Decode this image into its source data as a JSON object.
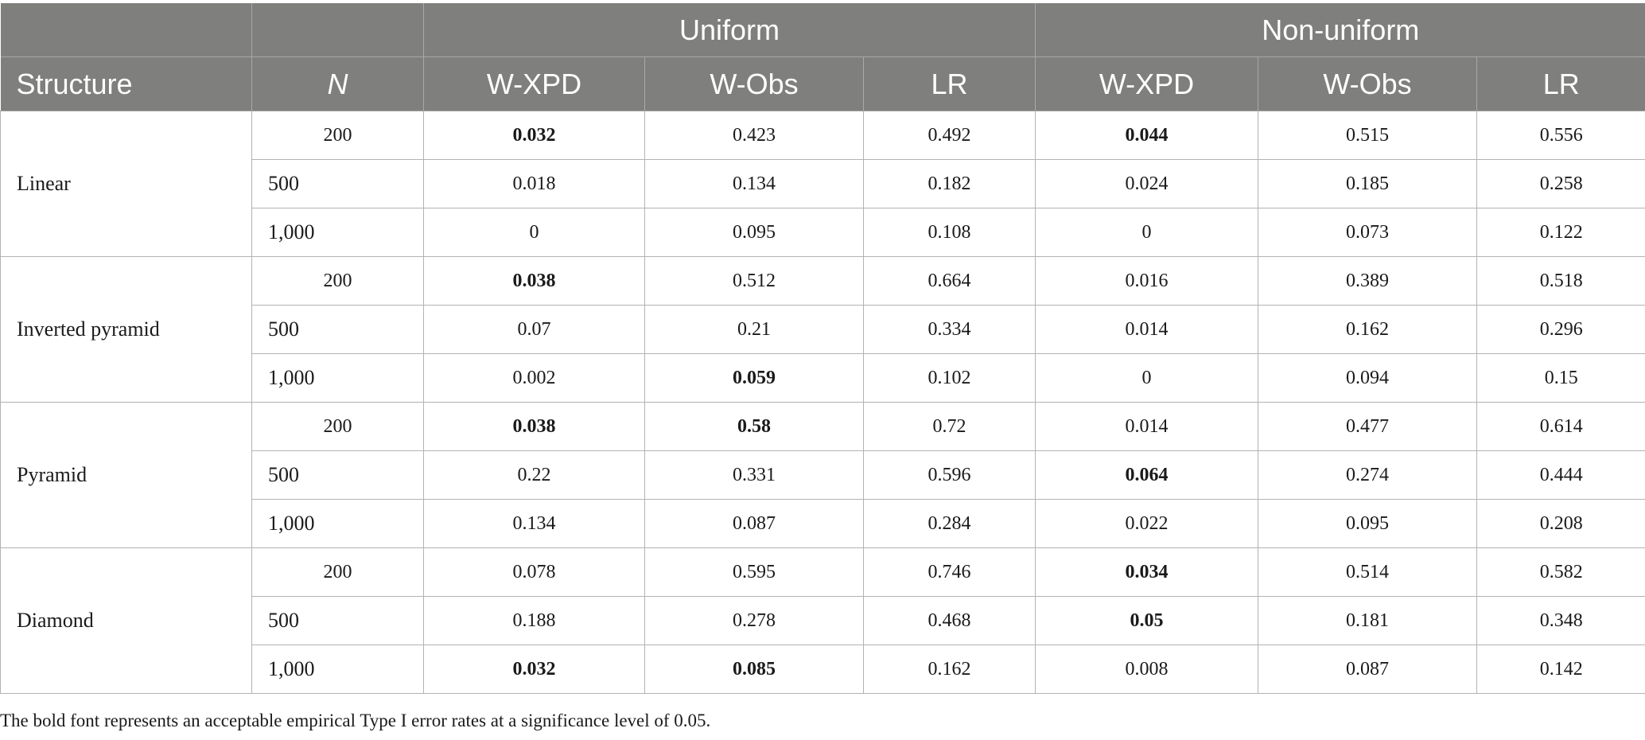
{
  "table": {
    "group_headers": [
      "",
      "",
      "Uniform",
      "Non-uniform"
    ],
    "column_headers": [
      "Structure",
      "N",
      "W-XPD",
      "W-Obs",
      "LR",
      "W-XPD",
      "W-Obs",
      "LR"
    ],
    "groups": [
      {
        "structure": "Linear",
        "rows": [
          {
            "n": "200",
            "cells": [
              {
                "v": "0.032",
                "b": true
              },
              {
                "v": "0.423",
                "b": false
              },
              {
                "v": "0.492",
                "b": false
              },
              {
                "v": "0.044",
                "b": true
              },
              {
                "v": "0.515",
                "b": false
              },
              {
                "v": "0.556",
                "b": false
              }
            ]
          },
          {
            "n": "500",
            "cells": [
              {
                "v": "0.018",
                "b": false
              },
              {
                "v": "0.134",
                "b": false
              },
              {
                "v": "0.182",
                "b": false
              },
              {
                "v": "0.024",
                "b": false
              },
              {
                "v": "0.185",
                "b": false
              },
              {
                "v": "0.258",
                "b": false
              }
            ]
          },
          {
            "n": "1,000",
            "cells": [
              {
                "v": "0",
                "b": false
              },
              {
                "v": "0.095",
                "b": false
              },
              {
                "v": "0.108",
                "b": false
              },
              {
                "v": "0",
                "b": false
              },
              {
                "v": "0.073",
                "b": false
              },
              {
                "v": "0.122",
                "b": false
              }
            ]
          }
        ]
      },
      {
        "structure": "Inverted pyramid",
        "rows": [
          {
            "n": "200",
            "cells": [
              {
                "v": "0.038",
                "b": true
              },
              {
                "v": "0.512",
                "b": false
              },
              {
                "v": "0.664",
                "b": false
              },
              {
                "v": "0.016",
                "b": false
              },
              {
                "v": "0.389",
                "b": false
              },
              {
                "v": "0.518",
                "b": false
              }
            ]
          },
          {
            "n": "500",
            "cells": [
              {
                "v": "0.07",
                "b": false
              },
              {
                "v": "0.21",
                "b": false
              },
              {
                "v": "0.334",
                "b": false
              },
              {
                "v": "0.014",
                "b": false
              },
              {
                "v": "0.162",
                "b": false
              },
              {
                "v": "0.296",
                "b": false
              }
            ]
          },
          {
            "n": "1,000",
            "cells": [
              {
                "v": "0.002",
                "b": false
              },
              {
                "v": "0.059",
                "b": true
              },
              {
                "v": "0.102",
                "b": false
              },
              {
                "v": "0",
                "b": false
              },
              {
                "v": "0.094",
                "b": false
              },
              {
                "v": "0.15",
                "b": false
              }
            ]
          }
        ]
      },
      {
        "structure": "Pyramid",
        "rows": [
          {
            "n": "200",
            "cells": [
              {
                "v": "0.038",
                "b": true
              },
              {
                "v": "0.58",
                "b": true
              },
              {
                "v": "0.72",
                "b": false
              },
              {
                "v": "0.014",
                "b": false
              },
              {
                "v": "0.477",
                "b": false
              },
              {
                "v": "0.614",
                "b": false
              }
            ]
          },
          {
            "n": "500",
            "cells": [
              {
                "v": "0.22",
                "b": false
              },
              {
                "v": "0.331",
                "b": false
              },
              {
                "v": "0.596",
                "b": false
              },
              {
                "v": "0.064",
                "b": true
              },
              {
                "v": "0.274",
                "b": false
              },
              {
                "v": "0.444",
                "b": false
              }
            ]
          },
          {
            "n": "1,000",
            "cells": [
              {
                "v": "0.134",
                "b": false
              },
              {
                "v": "0.087",
                "b": false
              },
              {
                "v": "0.284",
                "b": false
              },
              {
                "v": "0.022",
                "b": false
              },
              {
                "v": "0.095",
                "b": false
              },
              {
                "v": "0.208",
                "b": false
              }
            ]
          }
        ]
      },
      {
        "structure": "Diamond",
        "rows": [
          {
            "n": "200",
            "cells": [
              {
                "v": "0.078",
                "b": false
              },
              {
                "v": "0.595",
                "b": false
              },
              {
                "v": "0.746",
                "b": false
              },
              {
                "v": "0.034",
                "b": true
              },
              {
                "v": "0.514",
                "b": false
              },
              {
                "v": "0.582",
                "b": false
              }
            ]
          },
          {
            "n": "500",
            "cells": [
              {
                "v": "0.188",
                "b": false
              },
              {
                "v": "0.278",
                "b": false
              },
              {
                "v": "0.468",
                "b": false
              },
              {
                "v": "0.05",
                "b": true
              },
              {
                "v": "0.181",
                "b": false
              },
              {
                "v": "0.348",
                "b": false
              }
            ]
          },
          {
            "n": "1,000",
            "cells": [
              {
                "v": "0.032",
                "b": true
              },
              {
                "v": "0.085",
                "b": true
              },
              {
                "v": "0.162",
                "b": false
              },
              {
                "v": "0.008",
                "b": false
              },
              {
                "v": "0.087",
                "b": false
              },
              {
                "v": "0.142",
                "b": false
              }
            ]
          }
        ]
      }
    ]
  },
  "footnote": "The bold font represents an acceptable empirical Type I error rates at a significance level of 0.05.",
  "colors": {
    "header_bg": "#7f7f7e",
    "header_text": "#ffffff",
    "grid": "#b3b3b3"
  }
}
